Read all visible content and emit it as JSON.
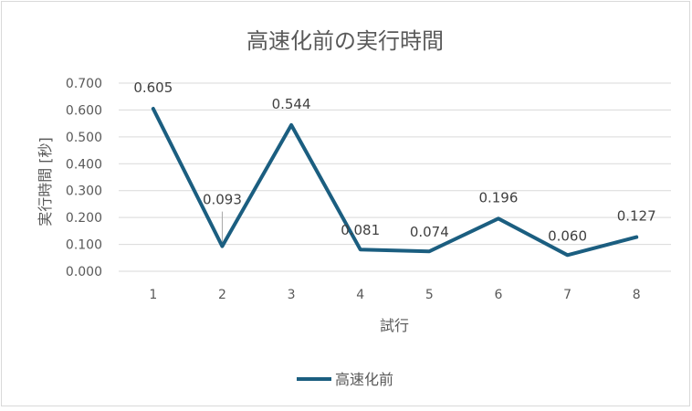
{
  "chart_data": {
    "type": "line",
    "title": "高速化前の実行時間",
    "xlabel": "試行",
    "ylabel": "実行時間 [秒]",
    "categories": [
      "1",
      "2",
      "3",
      "4",
      "5",
      "6",
      "7",
      "8"
    ],
    "series": [
      {
        "name": "高速化前",
        "values": [
          0.605,
          0.093,
          0.544,
          0.081,
          0.074,
          0.196,
          0.06,
          0.127
        ],
        "labels": [
          "0.605",
          "0.093",
          "0.544",
          "0.081",
          "0.074",
          "0.196",
          "0.060",
          "0.127"
        ]
      }
    ],
    "ylim": [
      0,
      0.7
    ],
    "yticks": [
      "0.000",
      "0.100",
      "0.200",
      "0.300",
      "0.400",
      "0.500",
      "0.600",
      "0.700"
    ],
    "grid": true,
    "legend": "bottom",
    "colors": {
      "line": "#1b5e80",
      "grid": "#d9d9d9",
      "text": "#595959",
      "title": "#595959"
    }
  }
}
